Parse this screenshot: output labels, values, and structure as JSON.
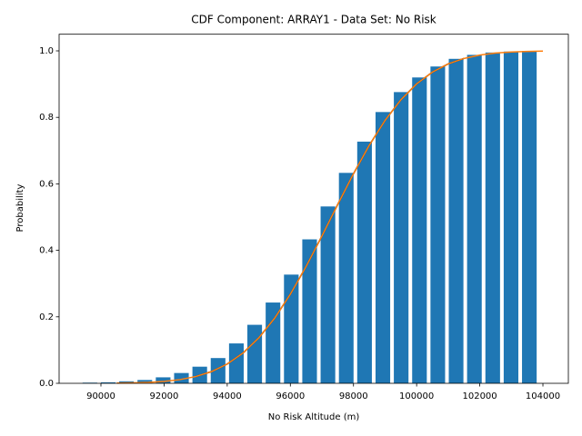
{
  "chart_data": {
    "type": "bar",
    "title": "CDF Component: ARRAY1 - Data Set: No Risk",
    "xlabel": "No Risk Altitude (m)",
    "ylabel": "Probability",
    "x": [
      89650,
      90230,
      90810,
      91390,
      91970,
      92550,
      93130,
      93710,
      94290,
      94870,
      95450,
      96030,
      96610,
      97190,
      97770,
      98350,
      98930,
      99510,
      100090,
      100670,
      101250,
      101830,
      102410,
      102990,
      103570
    ],
    "values": [
      0.002,
      0.003,
      0.006,
      0.01,
      0.018,
      0.031,
      0.05,
      0.076,
      0.12,
      0.176,
      0.243,
      0.327,
      0.433,
      0.532,
      0.633,
      0.727,
      0.816,
      0.876,
      0.92,
      0.953,
      0.976,
      0.988,
      0.995,
      0.998,
      1.0
    ],
    "color": "#1f77b4",
    "lines": [
      {
        "color": "#000000",
        "x": [
          93000,
          93500,
          94000,
          94500,
          95000,
          95500,
          96000,
          96500,
          97000,
          97500,
          98000,
          98500,
          99000,
          99500,
          100000,
          100500,
          101000,
          101500
        ],
        "values": [
          0.0203,
          0.0352,
          0.058,
          0.0912,
          0.1367,
          0.1957,
          0.268,
          0.3516,
          0.4432,
          0.5379,
          0.6306,
          0.716,
          0.791,
          0.8527,
          0.9008,
          0.9362,
          0.961,
          0.9772
        ]
      },
      {
        "color": "#ff7f0e",
        "x": [
          90500,
          91000,
          91500,
          92000,
          92500,
          93000,
          93500,
          94000,
          94500,
          95000,
          95500,
          96000,
          96500,
          97000,
          97500,
          98000,
          98500,
          99000,
          99500,
          100000,
          100500,
          101000,
          101500,
          102000,
          102500,
          103000,
          103500,
          104000
        ],
        "values": [
          0.0006,
          0.0013,
          0.0029,
          0.0058,
          0.0111,
          0.0203,
          0.0352,
          0.058,
          0.0912,
          0.1367,
          0.1957,
          0.268,
          0.3516,
          0.4432,
          0.5379,
          0.6306,
          0.716,
          0.791,
          0.8527,
          0.9008,
          0.9362,
          0.961,
          0.9772,
          0.9874,
          0.9934,
          0.9967,
          0.9984,
          0.9993
        ]
      }
    ],
    "xlim": [
      88675,
      104806
    ],
    "ylim": [
      0,
      1.05
    ],
    "xticks": [
      90000,
      92000,
      94000,
      96000,
      98000,
      100000,
      102000,
      104000
    ],
    "yticks": [
      {
        "value": 0,
        "label": "0.0"
      },
      {
        "value": 0.2,
        "label": "0.2"
      },
      {
        "value": 0.4,
        "label": "0.4"
      },
      {
        "value": 0.6,
        "label": "0.6"
      },
      {
        "value": 0.8,
        "label": "0.8"
      },
      {
        "value": 1,
        "label": "1.0"
      }
    ]
  }
}
